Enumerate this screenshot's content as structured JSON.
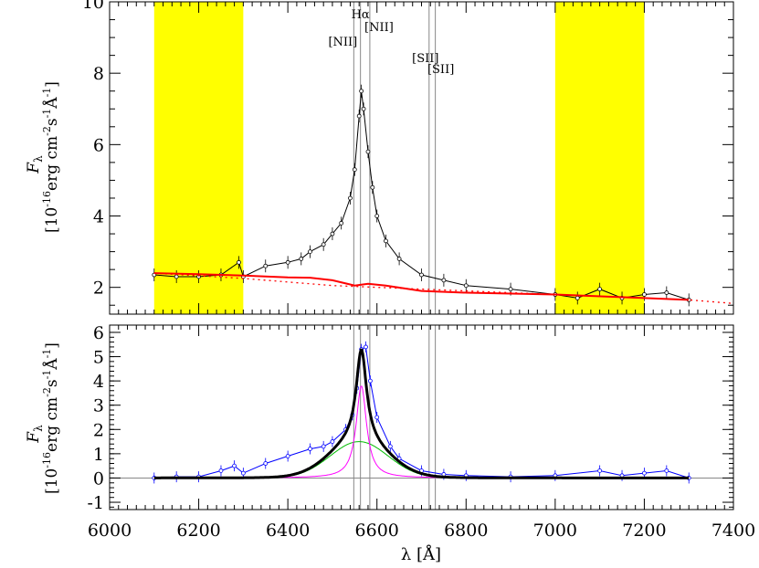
{
  "chart_data": [
    {
      "type": "line",
      "panel": "top",
      "xlabel": "",
      "ylabel": "F_λ [10^-16 erg cm^-2 s^-1 Å^-1]",
      "ylabel_symbol": "F",
      "ylabel_units": "[10",
      "xlim": [
        6000,
        7400
      ],
      "ylim": [
        1.25,
        10.0
      ],
      "x_ticks": [
        6000,
        6200,
        6400,
        6600,
        6800,
        7000,
        7200,
        7400
      ],
      "y_ticks": [
        2,
        4,
        6,
        8,
        10
      ],
      "grid": false,
      "shaded_regions": [
        {
          "x": [
            6100,
            6300
          ],
          "color": "#ffff00"
        },
        {
          "x": [
            7000,
            7200
          ],
          "color": "#ffff00"
        }
      ],
      "line_markers": [
        {
          "label": "Hα",
          "x": 6563
        },
        {
          "label": "[NII]",
          "x": 6548
        },
        {
          "label": "[NII]",
          "x": 6584
        },
        {
          "label": "[SII]",
          "x": 6717
        },
        {
          "label": "[SII]",
          "x": 6731
        }
      ],
      "series": [
        {
          "role": "observed spectrum with error bars",
          "color": "#000000",
          "x": [
            6100,
            6150,
            6200,
            6250,
            6290,
            6300,
            6350,
            6400,
            6430,
            6450,
            6480,
            6500,
            6520,
            6540,
            6550,
            6560,
            6565,
            6570,
            6580,
            6590,
            6600,
            6620,
            6650,
            6700,
            6750,
            6800,
            6900,
            7000,
            7050,
            7100,
            7150,
            7200,
            7250,
            7300
          ],
          "y": [
            2.35,
            2.3,
            2.3,
            2.35,
            2.7,
            2.3,
            2.6,
            2.7,
            2.8,
            3.0,
            3.2,
            3.5,
            3.8,
            4.5,
            5.3,
            6.8,
            7.5,
            7.0,
            5.8,
            4.8,
            4.0,
            3.3,
            2.8,
            2.35,
            2.2,
            2.05,
            1.95,
            1.8,
            1.7,
            1.95,
            1.7,
            1.8,
            1.85,
            1.65
          ]
        },
        {
          "role": "continuum fit",
          "color": "#ff0000",
          "x": [
            6100,
            6200,
            6300,
            6400,
            6450,
            6500,
            6550,
            6580,
            6620,
            6700,
            6800,
            7000,
            7200,
            7300
          ],
          "y": [
            2.4,
            2.37,
            2.33,
            2.28,
            2.27,
            2.2,
            2.05,
            2.1,
            2.05,
            1.9,
            1.85,
            1.8,
            1.7,
            1.65
          ]
        },
        {
          "role": "continuum fit (extrapolated, dotted)",
          "color": "#ff0000",
          "x": [
            6100,
            6300,
            6500,
            6700,
            7000,
            7300,
            7400
          ],
          "y": [
            2.4,
            2.25,
            2.05,
            1.95,
            1.8,
            1.65,
            1.55
          ]
        }
      ]
    },
    {
      "type": "line",
      "panel": "bottom",
      "xlabel": "λ [Å]",
      "xlabel_symbol": "λ",
      "xlabel_units": "[Å]",
      "ylabel": "F_λ [10^-16 erg cm^-2 s^-1 Å^-1]",
      "ylabel_symbol": "F",
      "ylabel_units": "[10",
      "xlim": [
        6000,
        7400
      ],
      "ylim": [
        -1.3,
        6.3
      ],
      "x_ticks": [
        6000,
        6200,
        6400,
        6600,
        6800,
        7000,
        7200,
        7400
      ],
      "y_ticks": [
        -1,
        0,
        1,
        2,
        3,
        4,
        5,
        6
      ],
      "grid": false,
      "zero_line": true,
      "line_marker_x": [
        6548,
        6563,
        6584,
        6717,
        6731
      ],
      "series": [
        {
          "role": "continuum-subtracted spectrum with error bars",
          "color": "#0000ff",
          "x": [
            6100,
            6150,
            6200,
            6250,
            6280,
            6300,
            6350,
            6400,
            6450,
            6480,
            6500,
            6530,
            6545,
            6555,
            6565,
            6575,
            6585,
            6600,
            6630,
            6650,
            6700,
            6750,
            6800,
            6900,
            7000,
            7100,
            7150,
            7200,
            7250,
            7300
          ],
          "y": [
            0.0,
            0.05,
            0.05,
            0.3,
            0.5,
            0.2,
            0.6,
            0.9,
            1.2,
            1.3,
            1.5,
            2.0,
            2.6,
            3.7,
            5.3,
            5.4,
            4.0,
            2.5,
            1.3,
            0.8,
            0.3,
            0.15,
            0.1,
            0.05,
            0.1,
            0.3,
            0.1,
            0.2,
            0.3,
            0.0
          ]
        },
        {
          "role": "total model",
          "color": "#000000",
          "model": {
            "broad_amp": 1.5,
            "broad_center": 6560,
            "broad_sigma": 65,
            "narrow_amp": 3.8,
            "narrow_center": 6565,
            "narrow_hwhm": 14
          }
        },
        {
          "role": "narrow component",
          "color": "#ff00ff",
          "model": {
            "amp": 3.8,
            "center": 6565,
            "hwhm": 14
          }
        },
        {
          "role": "broad component",
          "color": "#00bb00",
          "model": {
            "amp": 1.5,
            "center": 6560,
            "sigma": 65
          }
        }
      ]
    }
  ]
}
